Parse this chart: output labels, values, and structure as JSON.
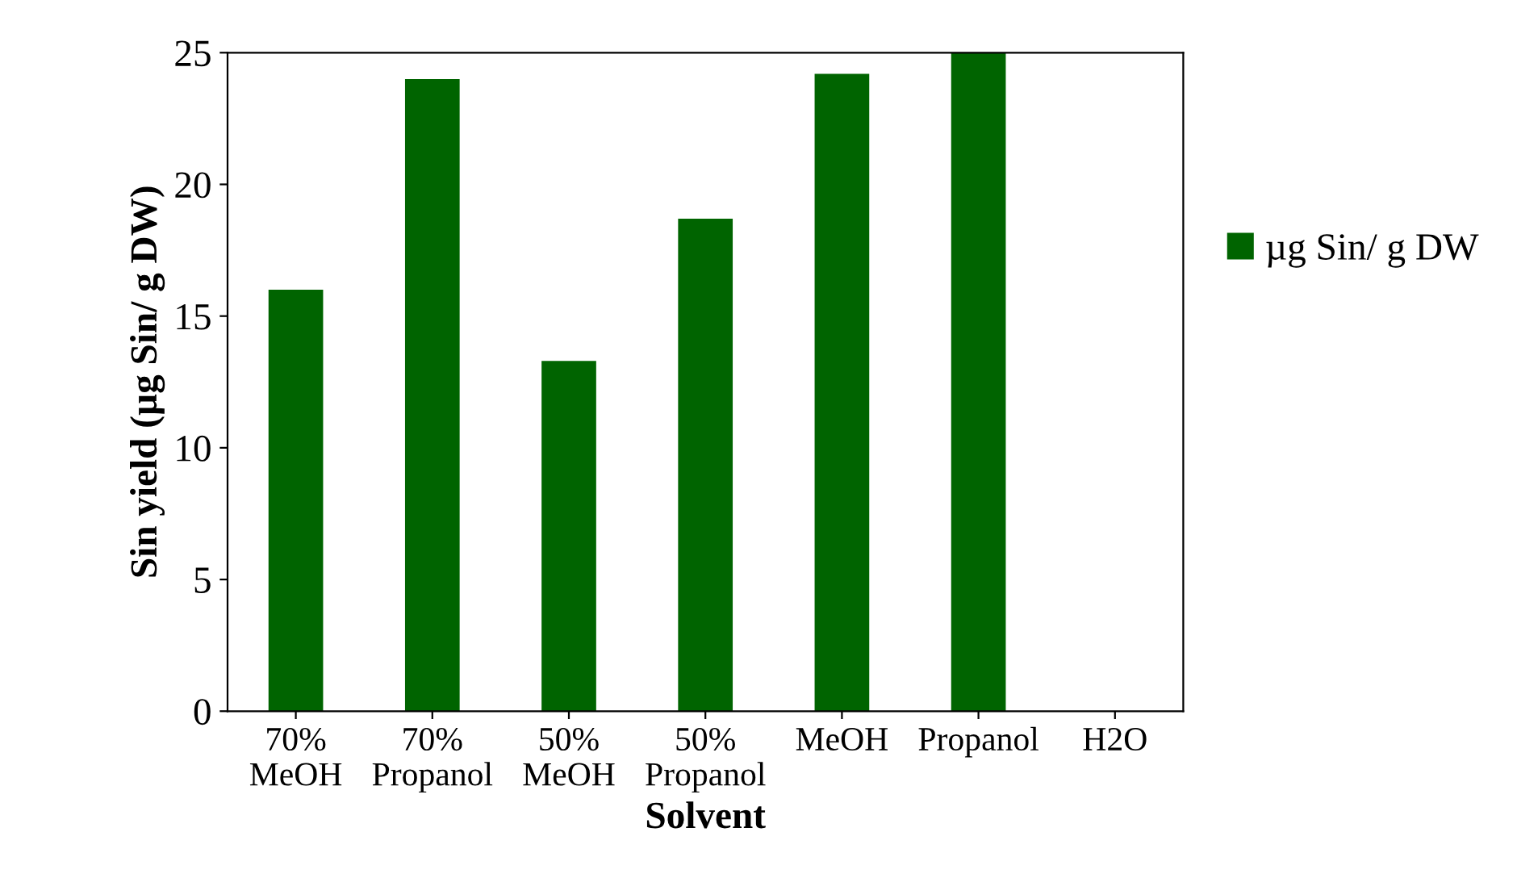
{
  "chart_data": {
    "type": "bar",
    "xlabel": "Solvent",
    "ylabel": "Sin yield (µg Sin/ g DW)",
    "categories": [
      "70%\nMeOH",
      "70%\nPropanol",
      "50%\nMeOH",
      "50%\nPropanol",
      "MeOH",
      "Propanol",
      "H2O"
    ],
    "series": [
      {
        "name": "µg Sin/ g DW",
        "color": "#006400",
        "values": [
          16,
          24,
          13.3,
          18.7,
          24.2,
          25,
          0
        ]
      }
    ],
    "ylim": [
      0,
      25
    ],
    "yticks": [
      0,
      5,
      10,
      15,
      20,
      25
    ],
    "grid": false,
    "legend": "right"
  }
}
